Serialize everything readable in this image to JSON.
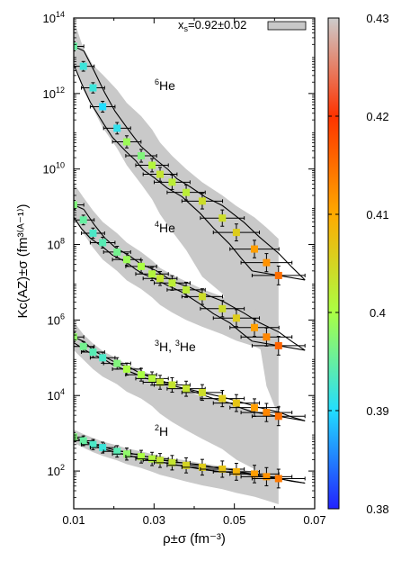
{
  "chart_data": {
    "type": "scatter",
    "xlabel": "ρ±σ (fm⁻³)",
    "ylabel": "Kc(AZ)±σ (fm³⁽ᴬ⁻¹⁾)",
    "xlim": [
      0.01,
      0.07
    ],
    "ylim_log10": [
      1,
      14
    ],
    "y_scale": "log",
    "x_ticks": [
      "0.01",
      "0.03",
      "0.05",
      "0.07"
    ],
    "y_ticks": [
      {
        "base": "10",
        "exp": "2",
        "log": 2
      },
      {
        "base": "10",
        "exp": "4",
        "log": 4
      },
      {
        "base": "10",
        "exp": "6",
        "log": 6
      },
      {
        "base": "10",
        "exp": "8",
        "log": 8
      },
      {
        "base": "10",
        "exp": "10",
        "log": 10
      },
      {
        "base": "10",
        "exp": "12",
        "log": 12
      },
      {
        "base": "10",
        "exp": "14",
        "log": 14
      }
    ],
    "legend": {
      "label": "x",
      "label_sub": "s",
      "label_rest": "=0.92±0.02",
      "placement": "top-right",
      "swatch_color": "#c8c8c8"
    },
    "colorbar": {
      "min": 0.38,
      "max": 0.43,
      "ticks": [
        "0.43",
        "0.42",
        "0.41",
        "0.4",
        "0.39",
        "0.38"
      ],
      "colors": [
        "#cccccc",
        "#ff3300",
        "#ffaa00",
        "#aaff44",
        "#22ddff",
        "#2222ff"
      ]
    },
    "series": [
      {
        "name": "⁶He",
        "label_pre": "",
        "label_sup": "6",
        "label_main": "He",
        "points": [
          {
            "x": 0.01,
            "logy": 13.25,
            "c": 0.395
          },
          {
            "x": 0.0124,
            "logy": 12.72,
            "c": 0.392
          },
          {
            "x": 0.0148,
            "logy": 12.15,
            "c": 0.392
          },
          {
            "x": 0.0172,
            "logy": 11.65,
            "c": 0.39
          },
          {
            "x": 0.0208,
            "logy": 11.08,
            "c": 0.391
          },
          {
            "x": 0.0232,
            "logy": 10.72,
            "c": 0.399
          },
          {
            "x": 0.0268,
            "logy": 10.35,
            "c": 0.397
          },
          {
            "x": 0.0295,
            "logy": 10.1,
            "c": 0.401
          },
          {
            "x": 0.0315,
            "logy": 9.86,
            "c": 0.403
          },
          {
            "x": 0.0345,
            "logy": 9.65,
            "c": 0.402
          },
          {
            "x": 0.038,
            "logy": 9.38,
            "c": 0.402
          },
          {
            "x": 0.042,
            "logy": 9.15,
            "c": 0.404
          },
          {
            "x": 0.047,
            "logy": 8.7,
            "c": 0.404
          },
          {
            "x": 0.0505,
            "logy": 8.32,
            "c": 0.406
          },
          {
            "x": 0.055,
            "logy": 7.88,
            "c": 0.411
          },
          {
            "x": 0.058,
            "logy": 7.52,
            "c": 0.412
          },
          {
            "x": 0.061,
            "logy": 7.18,
            "c": 0.415
          }
        ],
        "band_top_logy": [
          13.95,
          13.2,
          12.75,
          12.5,
          12.1,
          11.75,
          11.4,
          11.05,
          10.7,
          10.35,
          10.0,
          9.65,
          9.3,
          9.02,
          8.72,
          8.45,
          8.15
        ],
        "band_bottom_logy": [
          12.85,
          12.1,
          11.6,
          11.1,
          10.55,
          10.1,
          9.6,
          9.2,
          8.8,
          8.35,
          7.85,
          7.15,
          6.7,
          6.05,
          6.2,
          4.25,
          3.45
        ]
      },
      {
        "name": "⁴He",
        "label_pre": "",
        "label_sup": "4",
        "label_main": "He",
        "points": [
          {
            "x": 0.01,
            "logy": 9.05,
            "c": 0.397
          },
          {
            "x": 0.0124,
            "logy": 8.65,
            "c": 0.395
          },
          {
            "x": 0.0148,
            "logy": 8.3,
            "c": 0.393
          },
          {
            "x": 0.0172,
            "logy": 8.05,
            "c": 0.394
          },
          {
            "x": 0.0208,
            "logy": 7.8,
            "c": 0.396
          },
          {
            "x": 0.0232,
            "logy": 7.6,
            "c": 0.399
          },
          {
            "x": 0.0268,
            "logy": 7.42,
            "c": 0.4
          },
          {
            "x": 0.0295,
            "logy": 7.22,
            "c": 0.401
          },
          {
            "x": 0.0315,
            "logy": 7.1,
            "c": 0.403
          },
          {
            "x": 0.0345,
            "logy": 6.98,
            "c": 0.402
          },
          {
            "x": 0.038,
            "logy": 6.8,
            "c": 0.402
          },
          {
            "x": 0.042,
            "logy": 6.62,
            "c": 0.404
          },
          {
            "x": 0.047,
            "logy": 6.3,
            "c": 0.404
          },
          {
            "x": 0.0505,
            "logy": 6.05,
            "c": 0.406
          },
          {
            "x": 0.055,
            "logy": 5.8,
            "c": 0.411
          },
          {
            "x": 0.058,
            "logy": 5.55,
            "c": 0.413
          },
          {
            "x": 0.061,
            "logy": 5.32,
            "c": 0.416
          }
        ],
        "band_top_logy": [
          9.62,
          9.25,
          8.9,
          8.6,
          8.3,
          8.05,
          7.8,
          7.58,
          7.38,
          7.2,
          7.02,
          6.82,
          6.62,
          6.45,
          6.3,
          6.12,
          5.95
        ],
        "band_bottom_logy": [
          8.7,
          8.3,
          7.92,
          7.6,
          7.3,
          7.05,
          6.82,
          6.6,
          6.4,
          6.2,
          6.0,
          5.82,
          5.62,
          5.45,
          5.3,
          5.15,
          5.0
        ]
      },
      {
        "name": "³H, ³He",
        "label_pre": "",
        "label_sup": "3",
        "label_main": "H, ",
        "label_sup2": "3",
        "label_main2": "He",
        "points": [
          {
            "x": 0.01,
            "logy": 5.55,
            "c": 0.398
          },
          {
            "x": 0.0124,
            "logy": 5.3,
            "c": 0.396
          },
          {
            "x": 0.0148,
            "logy": 5.15,
            "c": 0.394
          },
          {
            "x": 0.0172,
            "logy": 5.0,
            "c": 0.393
          },
          {
            "x": 0.0208,
            "logy": 4.85,
            "c": 0.397
          },
          {
            "x": 0.0232,
            "logy": 4.7,
            "c": 0.4
          },
          {
            "x": 0.0268,
            "logy": 4.55,
            "c": 0.4
          },
          {
            "x": 0.0295,
            "logy": 4.45,
            "c": 0.401
          },
          {
            "x": 0.0315,
            "logy": 4.35,
            "c": 0.403
          },
          {
            "x": 0.0345,
            "logy": 4.28,
            "c": 0.403
          },
          {
            "x": 0.038,
            "logy": 4.18,
            "c": 0.403
          },
          {
            "x": 0.042,
            "logy": 4.08,
            "c": 0.404
          },
          {
            "x": 0.047,
            "logy": 3.92,
            "c": 0.406
          },
          {
            "x": 0.0505,
            "logy": 3.8,
            "c": 0.407
          },
          {
            "x": 0.055,
            "logy": 3.68,
            "c": 0.411
          },
          {
            "x": 0.058,
            "logy": 3.55,
            "c": 0.413
          },
          {
            "x": 0.061,
            "logy": 3.45,
            "c": 0.415
          }
        ],
        "band_top_logy": [
          5.95,
          5.62,
          5.38,
          5.18,
          4.98,
          4.82,
          4.68,
          4.52,
          4.38,
          4.25,
          4.12,
          3.98,
          3.85,
          3.72,
          3.6,
          3.5,
          3.45
        ],
        "band_bottom_logy": [
          5.2,
          4.95,
          4.7,
          4.5,
          4.3,
          4.1,
          3.92,
          3.72,
          3.52,
          3.3,
          3.08,
          2.85,
          2.58,
          2.3,
          2.05,
          1.85,
          1.7
        ]
      },
      {
        "name": "²H",
        "label_pre": "",
        "label_sup": "2",
        "label_main": "H",
        "points": [
          {
            "x": 0.01,
            "logy": 2.9,
            "c": 0.397
          },
          {
            "x": 0.0124,
            "logy": 2.8,
            "c": 0.395
          },
          {
            "x": 0.0148,
            "logy": 2.7,
            "c": 0.393
          },
          {
            "x": 0.0172,
            "logy": 2.62,
            "c": 0.392
          },
          {
            "x": 0.0208,
            "logy": 2.52,
            "c": 0.394
          },
          {
            "x": 0.0232,
            "logy": 2.45,
            "c": 0.398
          },
          {
            "x": 0.0268,
            "logy": 2.38,
            "c": 0.4
          },
          {
            "x": 0.0295,
            "logy": 2.32,
            "c": 0.401
          },
          {
            "x": 0.0315,
            "logy": 2.28,
            "c": 0.403
          },
          {
            "x": 0.0345,
            "logy": 2.22,
            "c": 0.403
          },
          {
            "x": 0.038,
            "logy": 2.15,
            "c": 0.405
          },
          {
            "x": 0.042,
            "logy": 2.1,
            "c": 0.406
          },
          {
            "x": 0.047,
            "logy": 2.05,
            "c": 0.407
          },
          {
            "x": 0.0505,
            "logy": 1.98,
            "c": 0.409
          },
          {
            "x": 0.055,
            "logy": 1.92,
            "c": 0.411
          },
          {
            "x": 0.058,
            "logy": 1.85,
            "c": 0.412
          },
          {
            "x": 0.061,
            "logy": 1.8,
            "c": 0.414
          }
        ],
        "band_top_logy": [
          3.1,
          2.98,
          2.88,
          2.78,
          2.68,
          2.6,
          2.52,
          2.45,
          2.4,
          2.33,
          2.28,
          2.2,
          2.12,
          2.05,
          1.98,
          1.92,
          1.88
        ],
        "band_bottom_logy": [
          2.75,
          2.62,
          2.5,
          2.4,
          2.28,
          2.18,
          2.08,
          1.98,
          1.9,
          1.82,
          1.72,
          1.62,
          1.52,
          1.42,
          1.32,
          1.22,
          1.12
        ]
      }
    ]
  }
}
